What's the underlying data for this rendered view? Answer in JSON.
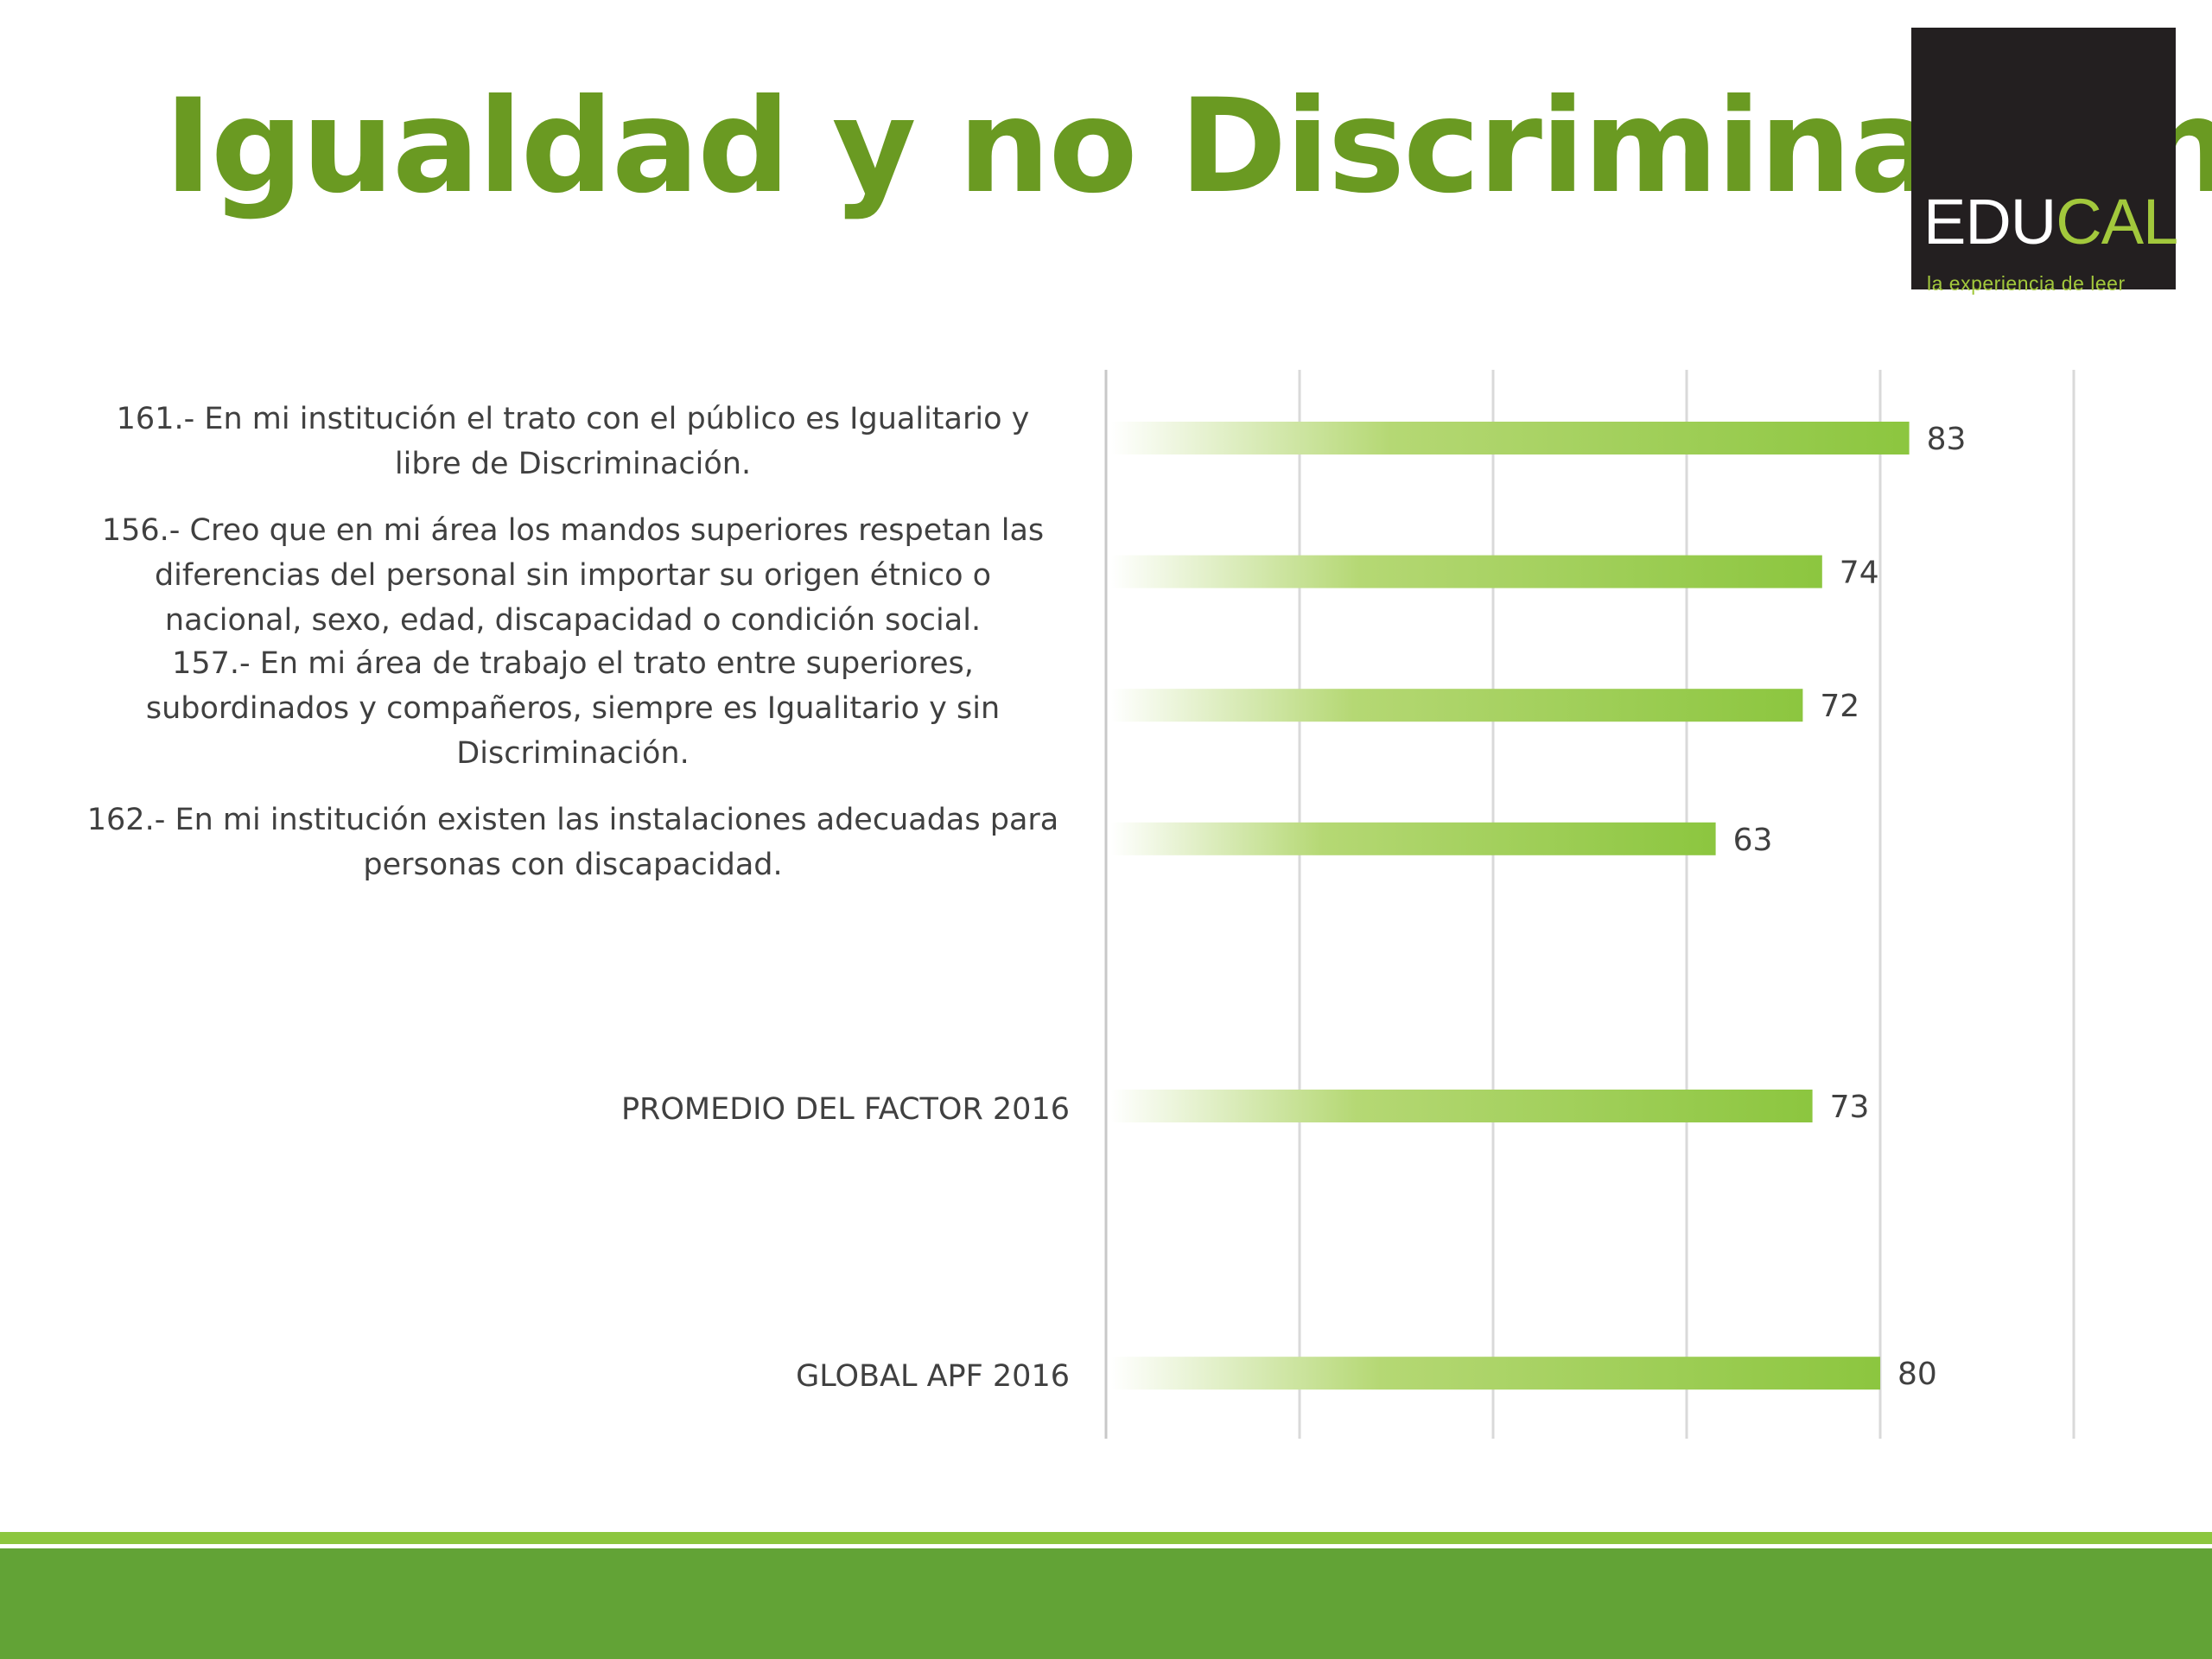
{
  "slide": {
    "title": "Igualdad y no Discriminación",
    "title_color": "#6a9a22"
  },
  "logo": {
    "word_main": "EDU",
    "word_accent": "CAL",
    "tagline": "la experiencia de leer",
    "background": "#231f20",
    "accent_color": "#a2c83c"
  },
  "footer": {
    "stripe_color": "#8cc63f",
    "band_color": "#62a336"
  },
  "chart_data": {
    "type": "bar",
    "orientation": "horizontal",
    "categories": [
      "161.- En mi institución el trato con el público es Igualitario y\nlibre de Discriminación.",
      "156.- Creo que en mi área los mandos superiores respetan las\ndiferencias del personal sin importar su origen étnico o\nnacional, sexo, edad, discapacidad o condición social.",
      "157.- En mi área de trabajo el trato entre superiores,\nsubordinados y compañeros, siempre es Igualitario y sin\nDiscriminación.",
      "162.- En mi institución existen las instalaciones adecuadas para\npersonas con discapacidad.",
      "",
      "PROMEDIO DEL FACTOR   2016",
      "",
      "GLOBAL APF   2016"
    ],
    "values": [
      83,
      74,
      72,
      63,
      null,
      73,
      null,
      80
    ],
    "value_labels": [
      "83",
      "74",
      "72",
      "63",
      "",
      "73",
      "",
      "80"
    ],
    "xlim": [
      0,
      100
    ],
    "grid": true,
    "gridlines_at": [
      0,
      20,
      40,
      60,
      80,
      100
    ],
    "bar_gradient": [
      "#ffffff",
      "#b5d874",
      "#8cc63f"
    ],
    "legend": "none"
  }
}
